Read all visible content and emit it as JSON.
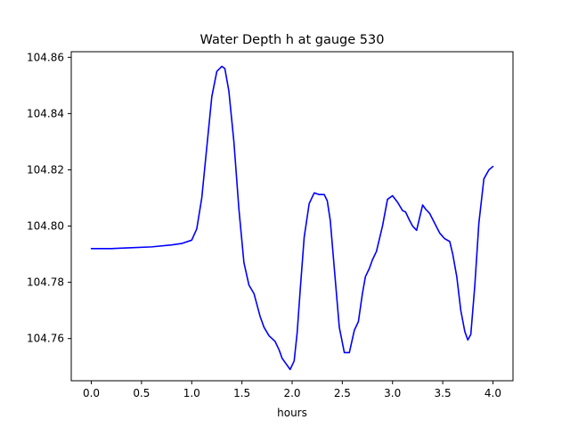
{
  "chart_data": {
    "type": "line",
    "title": "Water Depth h at gauge 530",
    "xlabel": "hours",
    "ylabel": "",
    "xlim": [
      -0.2,
      4.2
    ],
    "ylim": [
      104.745,
      104.862
    ],
    "xticks": [
      0.0,
      0.5,
      1.0,
      1.5,
      2.0,
      2.5,
      3.0,
      3.5,
      4.0
    ],
    "xtick_labels": [
      "0.0",
      "0.5",
      "1.0",
      "1.5",
      "2.0",
      "2.5",
      "3.0",
      "3.5",
      "4.0"
    ],
    "yticks": [
      104.76,
      104.78,
      104.8,
      104.82,
      104.84,
      104.86
    ],
    "ytick_labels": [
      "104.76",
      "104.78",
      "104.80",
      "104.82",
      "104.84",
      "104.86"
    ],
    "grid": false,
    "series": [
      {
        "color": "#0000ff",
        "x": [
          0.0,
          0.2,
          0.4,
          0.6,
          0.8,
          0.9,
          1.0,
          1.05,
          1.1,
          1.15,
          1.2,
          1.25,
          1.3,
          1.33,
          1.37,
          1.42,
          1.47,
          1.52,
          1.57,
          1.62,
          1.68,
          1.72,
          1.77,
          1.83,
          1.87,
          1.9,
          1.94,
          1.98,
          2.02,
          2.05,
          2.08,
          2.12,
          2.17,
          2.22,
          2.27,
          2.32,
          2.35,
          2.38,
          2.42,
          2.47,
          2.52,
          2.57,
          2.62,
          2.66,
          2.7,
          2.73,
          2.77,
          2.8,
          2.84,
          2.9,
          2.95,
          3.0,
          3.05,
          3.1,
          3.13,
          3.17,
          3.2,
          3.24,
          3.28,
          3.3,
          3.33,
          3.37,
          3.42,
          3.47,
          3.52,
          3.57,
          3.6,
          3.64,
          3.68,
          3.72,
          3.75,
          3.78,
          3.82,
          3.86,
          3.91,
          3.96,
          4.0
        ],
        "y": [
          104.792,
          104.792,
          104.7923,
          104.7926,
          104.7933,
          104.7938,
          104.795,
          104.799,
          104.81,
          104.828,
          104.846,
          104.855,
          104.8568,
          104.856,
          104.848,
          104.83,
          104.806,
          104.787,
          104.779,
          104.776,
          104.768,
          104.764,
          104.761,
          104.759,
          104.756,
          104.753,
          104.751,
          104.749,
          104.752,
          104.762,
          104.777,
          104.796,
          104.808,
          104.8118,
          104.8112,
          104.8112,
          104.809,
          104.802,
          104.785,
          104.764,
          104.755,
          104.755,
          104.763,
          104.766,
          104.776,
          104.782,
          104.785,
          104.788,
          104.791,
          104.8,
          104.8095,
          104.8108,
          104.8085,
          104.8055,
          104.805,
          104.802,
          104.8,
          104.7985,
          104.8045,
          104.8075,
          104.806,
          104.8045,
          104.801,
          104.7975,
          104.7955,
          104.7945,
          104.79,
          104.782,
          104.77,
          104.7625,
          104.7595,
          104.7615,
          104.779,
          104.801,
          104.8168,
          104.82,
          104.8212
        ]
      }
    ]
  }
}
